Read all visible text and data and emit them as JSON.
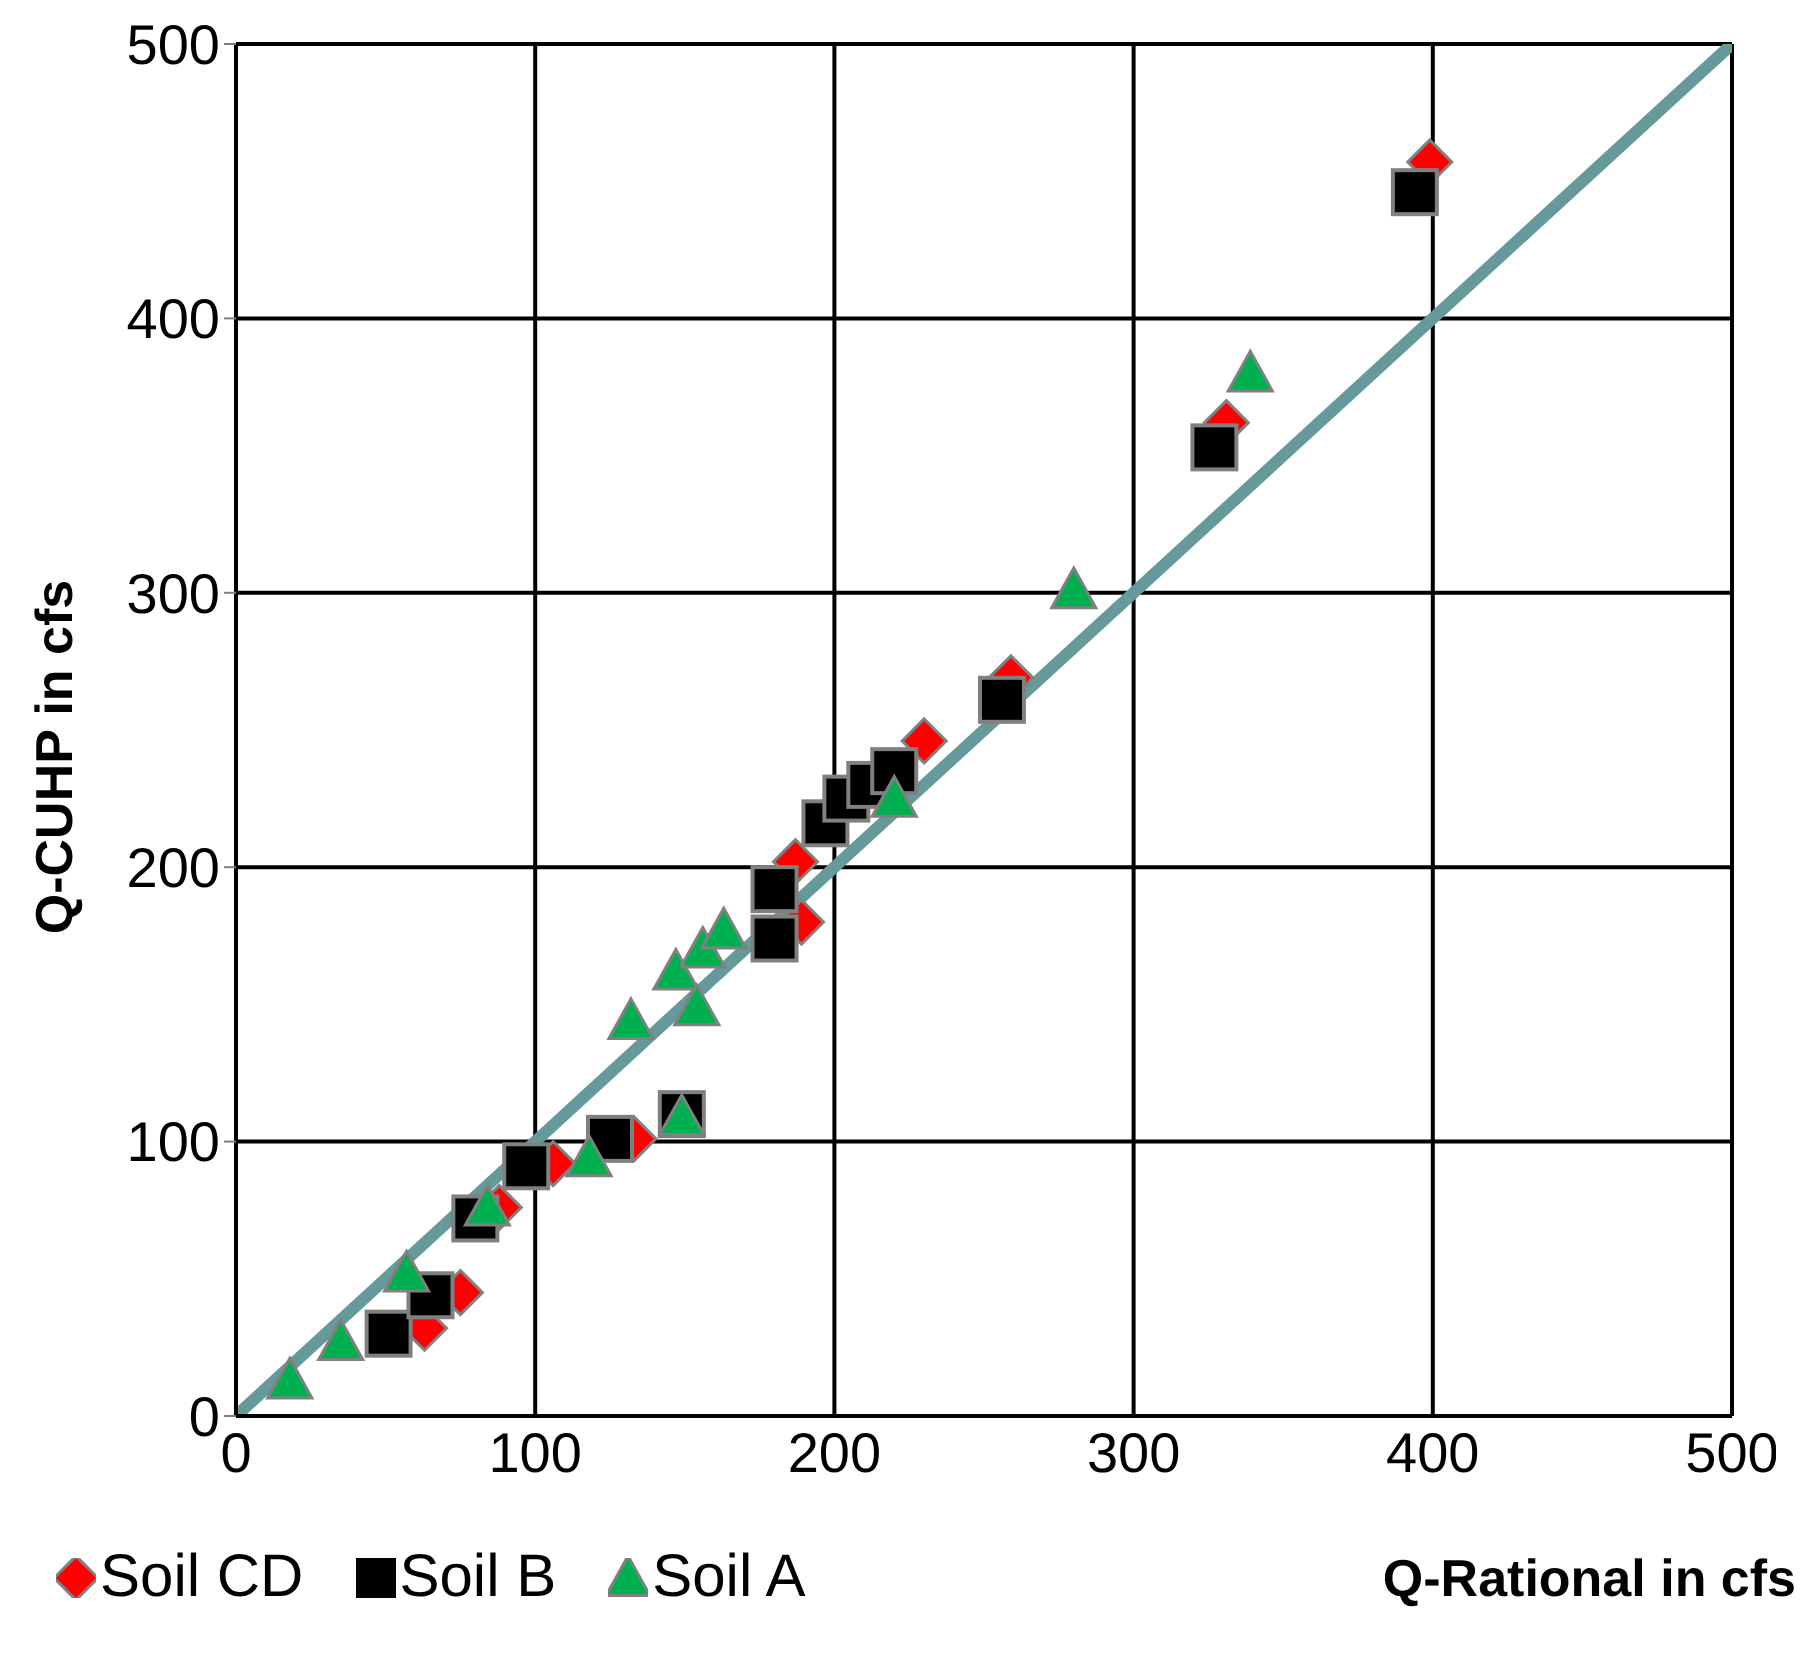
{
  "chart_data": {
    "type": "scatter",
    "xlabel": "Q-Rational in cfs",
    "ylabel": "Q-CUHP in cfs",
    "xlim": [
      0,
      500
    ],
    "ylim": [
      0,
      500
    ],
    "xticks": [
      0,
      100,
      200,
      300,
      400,
      500
    ],
    "yticks": [
      0,
      100,
      200,
      300,
      400,
      500
    ],
    "grid": true,
    "legend": "bottom left",
    "series": [
      {
        "name": "Soil CD",
        "color": "#ff0000",
        "marker": "diamond",
        "x": [
          63,
          75,
          88,
          106,
          133,
          187,
          189,
          230,
          259,
          331,
          399
        ],
        "values": [
          32,
          45,
          76,
          92,
          101,
          202,
          180,
          246,
          269,
          362,
          457
        ]
      },
      {
        "name": "Soil B",
        "color": "#000000",
        "marker": "square",
        "x": [
          51,
          65,
          80,
          97,
          125,
          149,
          180,
          180,
          197,
          204,
          212,
          220,
          256,
          327,
          394
        ],
        "values": [
          30,
          44,
          72,
          91,
          101,
          110,
          192,
          174,
          216,
          225,
          230,
          235,
          261,
          353,
          446
        ]
      },
      {
        "name": "Soil A",
        "color": "#00b050",
        "marker": "triangle",
        "x": [
          18,
          35,
          57,
          84,
          118,
          149,
          132,
          147,
          154,
          156,
          163,
          220,
          280,
          339
        ],
        "values": [
          13,
          27,
          52,
          76,
          94,
          109,
          144,
          162,
          149,
          170,
          177,
          225,
          301,
          380
        ]
      },
      {
        "type": "line",
        "color": "#669999",
        "marker": "none",
        "x": [
          0,
          500
        ],
        "values": [
          0,
          500
        ]
      }
    ]
  }
}
